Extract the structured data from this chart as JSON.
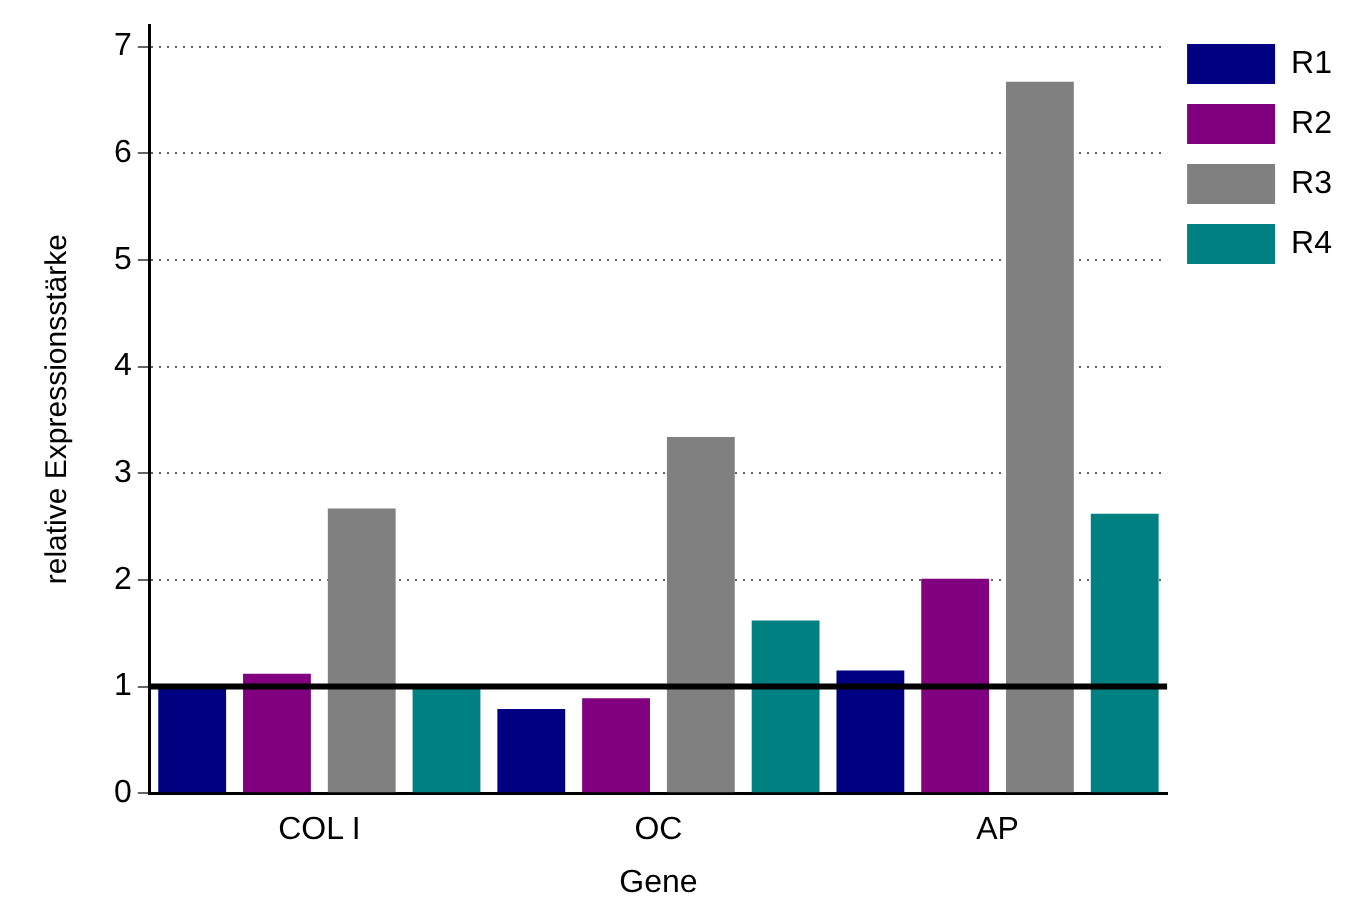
{
  "chart_data": {
    "type": "bar",
    "xlabel": "Gene",
    "ylabel": "relative Expressionsstärke",
    "categories": [
      "COL I",
      "OC",
      "AP"
    ],
    "series": [
      {
        "name": "R1",
        "color": "#000080",
        "values": [
          1.0,
          0.79,
          1.15
        ]
      },
      {
        "name": "R2",
        "color": "#800080",
        "values": [
          1.12,
          0.89,
          2.01
        ]
      },
      {
        "name": "R3",
        "color": "#808080",
        "values": [
          2.67,
          3.34,
          6.67
        ]
      },
      {
        "name": "R4",
        "color": "#008080",
        "values": [
          1.0,
          1.62,
          2.62
        ]
      }
    ],
    "ylim": [
      0,
      7.2
    ],
    "yticks": [
      0,
      1,
      2,
      3,
      4,
      5,
      6,
      7
    ],
    "grid": "y",
    "legend": "top right",
    "ref_lines": [
      {
        "axis": "y",
        "value": 1,
        "color": "#000000"
      }
    ]
  }
}
